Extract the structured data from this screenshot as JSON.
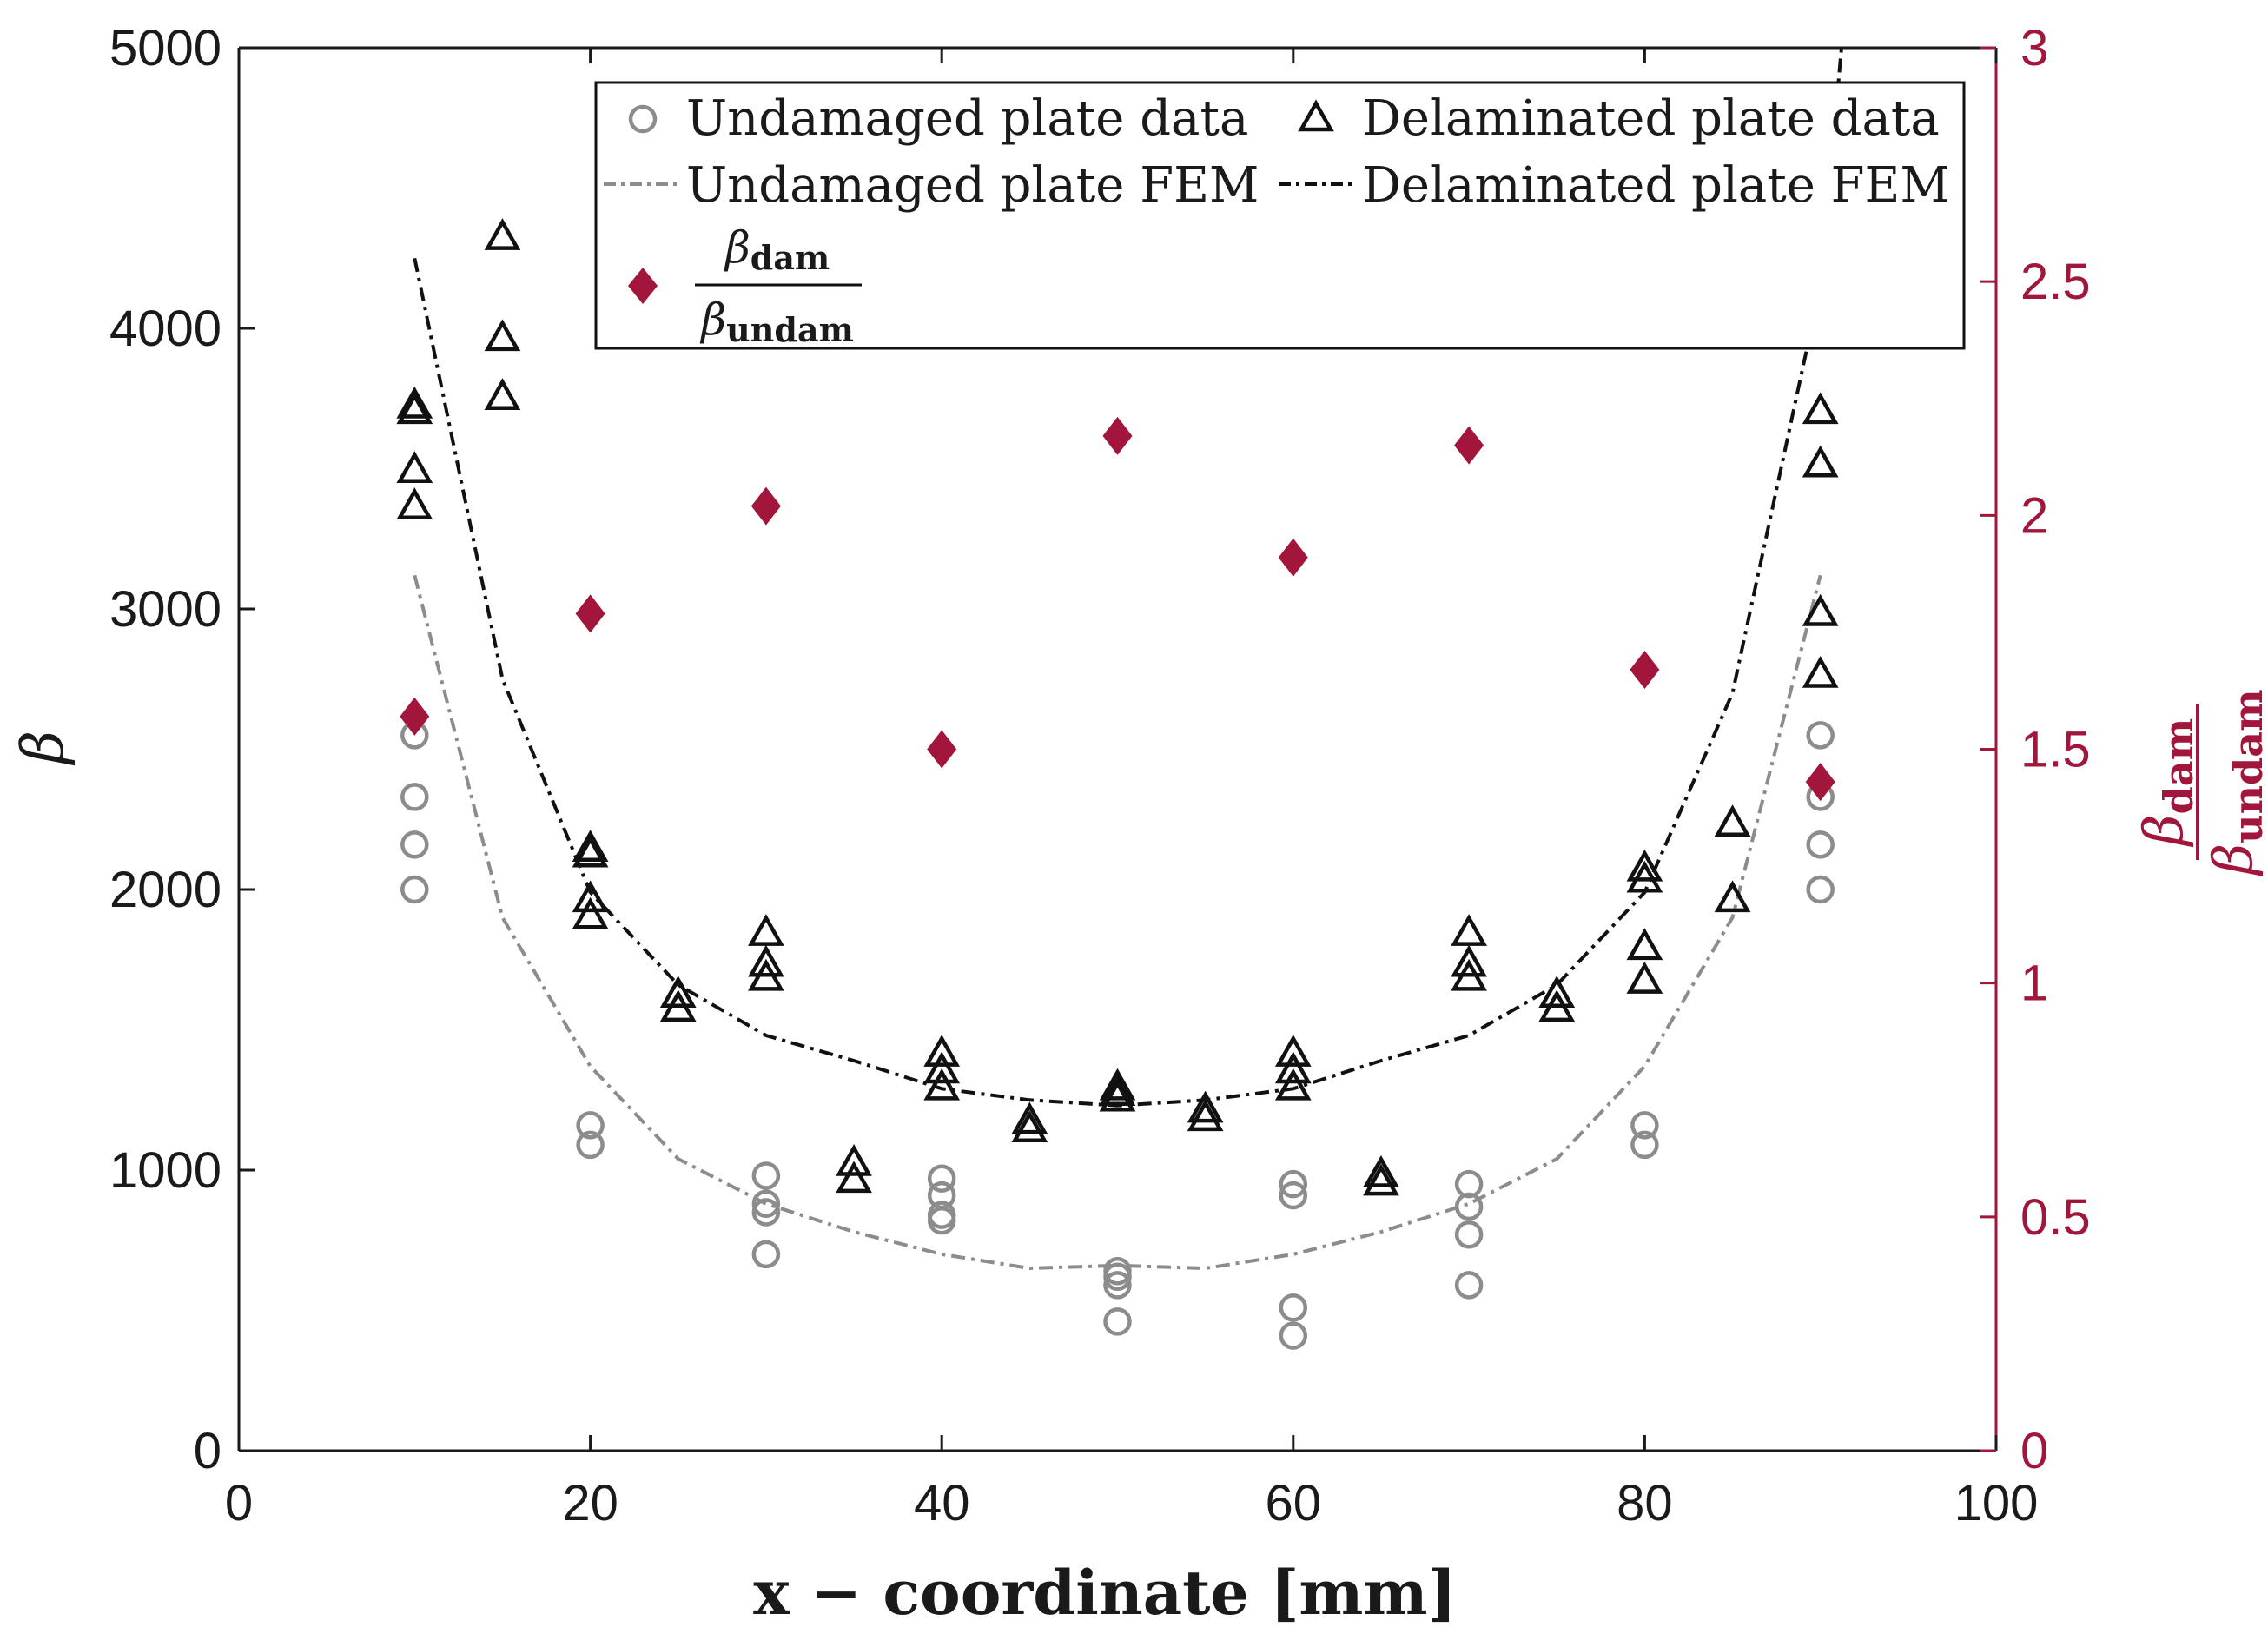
{
  "chart_data": {
    "type": "scatter",
    "title": "",
    "xlabel": "x − coordinate [mm]",
    "ylabel": "β",
    "ylabel_right": {
      "numer": "β",
      "numer_sub": "dam",
      "denom": "β",
      "denom_sub": "undam"
    },
    "xlim": [
      0,
      100
    ],
    "ylim": [
      0,
      5000
    ],
    "ylim_right": [
      0,
      3
    ],
    "x_ticks": [
      "0",
      "20",
      "40",
      "60",
      "80",
      "100"
    ],
    "y_ticks": [
      "0",
      "1000",
      "2000",
      "3000",
      "4000",
      "5000"
    ],
    "y_right_ticks": [
      "0",
      "0.5",
      "1",
      "1.5",
      "2",
      "2.5",
      "3"
    ],
    "legend_position": "top-center",
    "legend": {
      "undamaged_data": "Undamaged plate data",
      "delaminated_data": "Delaminated plate data",
      "undamaged_fem": "Undamaged plate FEM",
      "delaminated_fem": "Delaminated plate FEM",
      "ratio_numer": "β",
      "ratio_numer_sub": "dam",
      "ratio_denom": "β",
      "ratio_denom_sub": "undam"
    },
    "colors": {
      "undamaged": "#8c8c8c",
      "delaminated": "#111111",
      "ratio": "#a1163a"
    },
    "series": [
      {
        "name": "Undamaged plate data",
        "kind": "circle",
        "axis": "left",
        "points": [
          [
            10,
            2000
          ],
          [
            10,
            2160
          ],
          [
            10,
            2330
          ],
          [
            10,
            2550
          ],
          [
            20,
            1090
          ],
          [
            20,
            1160
          ],
          [
            30,
            700
          ],
          [
            30,
            850
          ],
          [
            30,
            880
          ],
          [
            30,
            980
          ],
          [
            40,
            820
          ],
          [
            40,
            840
          ],
          [
            40,
            910
          ],
          [
            40,
            970
          ],
          [
            50,
            460
          ],
          [
            50,
            590
          ],
          [
            50,
            620
          ],
          [
            50,
            640
          ],
          [
            60,
            410
          ],
          [
            60,
            510
          ],
          [
            60,
            910
          ],
          [
            60,
            950
          ],
          [
            70,
            590
          ],
          [
            70,
            770
          ],
          [
            70,
            870
          ],
          [
            70,
            950
          ],
          [
            80,
            1090
          ],
          [
            80,
            1160
          ],
          [
            90,
            2000
          ],
          [
            90,
            2160
          ],
          [
            90,
            2330
          ],
          [
            90,
            2550
          ]
        ]
      },
      {
        "name": "Delaminated plate data",
        "kind": "triangle",
        "axis": "left",
        "points": [
          [
            10,
            3360
          ],
          [
            10,
            3490
          ],
          [
            10,
            3700
          ],
          [
            10,
            3720
          ],
          [
            15,
            3750
          ],
          [
            15,
            3960
          ],
          [
            15,
            4320
          ],
          [
            20,
            1900
          ],
          [
            20,
            1960
          ],
          [
            20,
            2120
          ],
          [
            20,
            2140
          ],
          [
            25,
            1570
          ],
          [
            25,
            1620
          ],
          [
            30,
            1680
          ],
          [
            30,
            1730
          ],
          [
            30,
            1840
          ],
          [
            35,
            960
          ],
          [
            35,
            1020
          ],
          [
            40,
            1290
          ],
          [
            40,
            1350
          ],
          [
            40,
            1410
          ],
          [
            45,
            1140
          ],
          [
            45,
            1170
          ],
          [
            50,
            1250
          ],
          [
            50,
            1270
          ],
          [
            50,
            1290
          ],
          [
            55,
            1180
          ],
          [
            55,
            1210
          ],
          [
            60,
            1290
          ],
          [
            60,
            1350
          ],
          [
            60,
            1410
          ],
          [
            65,
            950
          ],
          [
            65,
            980
          ],
          [
            70,
            1680
          ],
          [
            70,
            1730
          ],
          [
            70,
            1840
          ],
          [
            75,
            1570
          ],
          [
            75,
            1620
          ],
          [
            80,
            1670
          ],
          [
            80,
            1790
          ],
          [
            80,
            2030
          ],
          [
            80,
            2070
          ],
          [
            85,
            1960
          ],
          [
            85,
            2230
          ],
          [
            90,
            2760
          ],
          [
            90,
            2980
          ],
          [
            90,
            3510
          ],
          [
            90,
            3700
          ]
        ]
      },
      {
        "name": "Undamaged plate FEM",
        "kind": "line",
        "dash": "dashdot",
        "axis": "left",
        "points": [
          [
            10,
            3120
          ],
          [
            15,
            1900
          ],
          [
            20,
            1370
          ],
          [
            25,
            1040
          ],
          [
            30,
            880
          ],
          [
            35,
            780
          ],
          [
            40,
            700
          ],
          [
            45,
            650
          ],
          [
            50,
            660
          ],
          [
            55,
            650
          ],
          [
            60,
            700
          ],
          [
            65,
            780
          ],
          [
            70,
            880
          ],
          [
            75,
            1040
          ],
          [
            80,
            1370
          ],
          [
            85,
            1900
          ],
          [
            90,
            3120
          ]
        ]
      },
      {
        "name": "Delaminated plate FEM",
        "kind": "line",
        "dash": "dashdot",
        "axis": "left",
        "points": [
          [
            10,
            4250
          ],
          [
            15,
            2750
          ],
          [
            20,
            1990
          ],
          [
            25,
            1660
          ],
          [
            30,
            1480
          ],
          [
            35,
            1390
          ],
          [
            40,
            1290
          ],
          [
            45,
            1250
          ],
          [
            50,
            1230
          ],
          [
            55,
            1250
          ],
          [
            60,
            1290
          ],
          [
            65,
            1390
          ],
          [
            70,
            1480
          ],
          [
            75,
            1660
          ],
          [
            80,
            1990
          ],
          [
            85,
            2700
          ],
          [
            90,
            4150
          ],
          [
            91.2,
            5000
          ]
        ]
      },
      {
        "name": "β_dam / β_undam",
        "kind": "diamond",
        "axis": "right",
        "points": [
          [
            10,
            1.57
          ],
          [
            20,
            1.79
          ],
          [
            30,
            2.02
          ],
          [
            40,
            1.5
          ],
          [
            50,
            2.17
          ],
          [
            60,
            1.91
          ],
          [
            70,
            2.15
          ],
          [
            80,
            1.67
          ],
          [
            90,
            1.43
          ]
        ]
      }
    ]
  }
}
